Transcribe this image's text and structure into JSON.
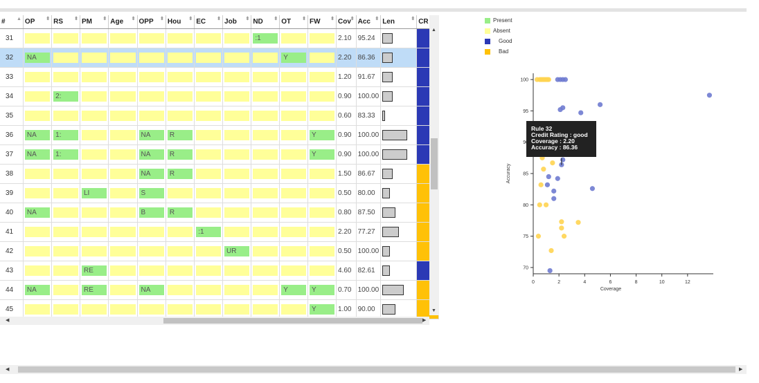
{
  "table": {
    "columns": [
      {
        "key": "num",
        "label": "#",
        "w": 32
      },
      {
        "key": "op",
        "label": "OP",
        "w": 40
      },
      {
        "key": "rs",
        "label": "RS",
        "w": 40
      },
      {
        "key": "pm",
        "label": "PM",
        "w": 40
      },
      {
        "key": "age",
        "label": "Age",
        "w": 40
      },
      {
        "key": "opp",
        "label": "OPP",
        "w": 40
      },
      {
        "key": "hou",
        "label": "Hou",
        "w": 40
      },
      {
        "key": "ec",
        "label": "EC",
        "w": 40
      },
      {
        "key": "job",
        "label": "Job",
        "w": 40
      },
      {
        "key": "nd",
        "label": "ND",
        "w": 40
      },
      {
        "key": "ot",
        "label": "OT",
        "w": 40
      },
      {
        "key": "fw",
        "label": "FW",
        "w": 40
      },
      {
        "key": "cov",
        "label": "Cov",
        "w": 26
      },
      {
        "key": "acc",
        "label": "Acc",
        "w": 32
      },
      {
        "key": "len",
        "label": "Len",
        "w": 50
      },
      {
        "key": "cr",
        "label": "CR",
        "w": 30
      }
    ],
    "rows": [
      {
        "num": "31",
        "cells": {
          "nd": ":1"
        },
        "cov": "2.10",
        "acc": "95.24",
        "len": 0.37,
        "cr": "good"
      },
      {
        "num": "32",
        "selected": true,
        "cells": {
          "op": "NA",
          "ot": "Y"
        },
        "cov": "2.20",
        "acc": "86.36",
        "len": 0.37,
        "cr": "good"
      },
      {
        "num": "33",
        "cells": {},
        "cov": "1.20",
        "acc": "91.67",
        "len": 0.37,
        "cr": "good"
      },
      {
        "num": "34",
        "cells": {
          "rs": "2:"
        },
        "cov": "0.90",
        "acc": "100.00",
        "len": 0.37,
        "cr": "good"
      },
      {
        "num": "35",
        "cells": {},
        "cov": "0.60",
        "acc": "83.33",
        "len": 0.05,
        "cr": "good"
      },
      {
        "num": "36",
        "cells": {
          "op": "NA",
          "rs": "1:",
          "opp": "NA",
          "hou": "R",
          "fw": "Y"
        },
        "cov": "0.90",
        "acc": "100.00",
        "len": 1.0,
        "cr": "good"
      },
      {
        "num": "37",
        "cells": {
          "op": "NA",
          "rs": "1:",
          "opp": "NA",
          "hou": "R",
          "fw": "Y"
        },
        "cov": "0.90",
        "acc": "100.00",
        "len": 1.0,
        "cr": "good"
      },
      {
        "num": "38",
        "cells": {
          "opp": "NA",
          "hou": "R"
        },
        "cov": "1.50",
        "acc": "86.67",
        "len": 0.37,
        "cr": "bad"
      },
      {
        "num": "39",
        "cells": {
          "pm": "LI",
          "opp": "S"
        },
        "cov": "0.50",
        "acc": "80.00",
        "len": 0.25,
        "cr": "bad"
      },
      {
        "num": "40",
        "cells": {
          "op": "NA",
          "opp": "B",
          "hou": "R"
        },
        "cov": "0.80",
        "acc": "87.50",
        "len": 0.5,
        "cr": "bad"
      },
      {
        "num": "41",
        "cells": {
          "ec": ":1"
        },
        "cov": "2.20",
        "acc": "77.27",
        "len": 0.66,
        "cr": "bad"
      },
      {
        "num": "42",
        "cells": {
          "job": "UR"
        },
        "cov": "0.50",
        "acc": "100.00",
        "len": 0.25,
        "cr": "bad"
      },
      {
        "num": "43",
        "cells": {
          "pm": "RE"
        },
        "cov": "4.60",
        "acc": "82.61",
        "len": 0.25,
        "cr": "good"
      },
      {
        "num": "44",
        "cells": {
          "op": "NA",
          "pm": "RE",
          "opp": "NA",
          "ot": "Y",
          "fw": "Y"
        },
        "cov": "0.70",
        "acc": "100.00",
        "len": 0.85,
        "cr": "bad"
      },
      {
        "num": "45",
        "cells": {
          "fw": "Y"
        },
        "cov": "1.00",
        "acc": "90.00",
        "len": 0.5,
        "cr": "bad"
      }
    ]
  },
  "colors": {
    "present": "#99ee88",
    "absent": "#ffff99",
    "good": "#2b39b5",
    "bad": "#ffc107",
    "selected_row": "#bfdcf7"
  },
  "legend": [
    {
      "label": "Present",
      "color": "#99ee88"
    },
    {
      "label": "Absent",
      "color": "#ffff99"
    },
    {
      "label": "Good",
      "color": "#2b39b5"
    },
    {
      "label": "Bad",
      "color": "#ffc107"
    }
  ],
  "tooltip": {
    "lines": [
      "Rule 32",
      "Credit Rating : good",
      "Coverage : 2.20",
      "Accuracy : 86.36"
    ]
  },
  "chart_data": {
    "type": "scatter",
    "xlabel": "Coverage",
    "ylabel": "Accuracy",
    "xlim": [
      0,
      14
    ],
    "ylim": [
      69,
      101
    ],
    "xticks": [
      0,
      2,
      4,
      6,
      8,
      10,
      12
    ],
    "yticks": [
      70,
      75,
      80,
      85,
      90,
      95,
      100
    ],
    "series": [
      {
        "name": "Good",
        "color": "#6f7bd0",
        "points": [
          [
            1.9,
            100
          ],
          [
            2.1,
            100
          ],
          [
            2.3,
            100
          ],
          [
            2.5,
            100
          ],
          [
            13.7,
            97.5
          ],
          [
            5.2,
            96
          ],
          [
            2.3,
            95.5
          ],
          [
            2.1,
            95.2
          ],
          [
            3.7,
            94.7
          ],
          [
            1.4,
            93
          ],
          [
            2.2,
            91.5
          ],
          [
            2.5,
            88.5
          ],
          [
            2.3,
            87.2
          ],
          [
            2.2,
            86.4
          ],
          [
            1.2,
            84.5
          ],
          [
            1.9,
            84.2
          ],
          [
            1.1,
            83.2
          ],
          [
            1.6,
            82.2
          ],
          [
            4.6,
            82.6
          ],
          [
            1.6,
            81
          ],
          [
            1.3,
            69.5
          ]
        ]
      },
      {
        "name": "Bad",
        "color": "#ffd451",
        "points": [
          [
            0.3,
            100
          ],
          [
            0.5,
            100
          ],
          [
            0.6,
            100
          ],
          [
            0.7,
            100
          ],
          [
            0.8,
            100
          ],
          [
            0.9,
            100
          ],
          [
            1.0,
            100
          ],
          [
            1.1,
            100
          ],
          [
            1.2,
            100
          ],
          [
            1.5,
            86.7
          ],
          [
            0.7,
            87.5
          ],
          [
            0.8,
            85.7
          ],
          [
            2.2,
            77.3
          ],
          [
            2.2,
            76.3
          ],
          [
            3.5,
            77.2
          ],
          [
            2.4,
            75
          ],
          [
            1.4,
            72.7
          ],
          [
            0.5,
            80
          ],
          [
            1.0,
            80
          ],
          [
            0.6,
            83.2
          ],
          [
            0.4,
            75
          ]
        ]
      }
    ],
    "highlight": {
      "x": 2.2,
      "y": 86.36
    }
  }
}
